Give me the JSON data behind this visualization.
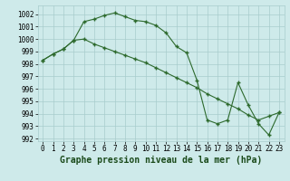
{
  "line1_x": [
    0,
    1,
    2,
    3,
    4,
    5,
    6,
    7,
    8,
    9,
    10,
    11,
    12,
    13,
    14,
    15,
    16,
    17,
    18,
    19,
    20,
    21,
    22,
    23
  ],
  "line1_y": [
    998.3,
    998.8,
    999.2,
    999.9,
    1001.4,
    1001.6,
    1001.9,
    1002.1,
    1001.8,
    1001.5,
    1001.4,
    1001.1,
    1000.5,
    999.4,
    998.9,
    996.7,
    993.5,
    993.2,
    993.5,
    996.5,
    994.7,
    993.2,
    992.3,
    994.1
  ],
  "line2_x": [
    0,
    1,
    2,
    3,
    4,
    5,
    6,
    7,
    8,
    9,
    10,
    11,
    12,
    13,
    14,
    15,
    16,
    17,
    18,
    19,
    20,
    21,
    22,
    23
  ],
  "line2_y": [
    998.3,
    998.8,
    999.2,
    999.9,
    1000.0,
    999.6,
    999.3,
    999.0,
    998.7,
    998.4,
    998.1,
    997.7,
    997.3,
    996.9,
    996.5,
    996.1,
    995.6,
    995.2,
    994.8,
    994.4,
    993.9,
    993.5,
    993.8,
    994.1
  ],
  "line_color": "#2d6a2d",
  "bg_color": "#ceeaea",
  "grid_color": "#a8cccc",
  "ylim_min": 991.8,
  "ylim_max": 1002.7,
  "xlim_min": -0.5,
  "xlim_max": 23.5,
  "yticks": [
    992,
    993,
    994,
    995,
    996,
    997,
    998,
    999,
    1000,
    1001,
    1002
  ],
  "xticks": [
    0,
    1,
    2,
    3,
    4,
    5,
    6,
    7,
    8,
    9,
    10,
    11,
    12,
    13,
    14,
    15,
    16,
    17,
    18,
    19,
    20,
    21,
    22,
    23
  ],
  "xlabel": "Graphe pression niveau de la mer (hPa)",
  "xlabel_fontsize": 7,
  "tick_fontsize": 5.5
}
